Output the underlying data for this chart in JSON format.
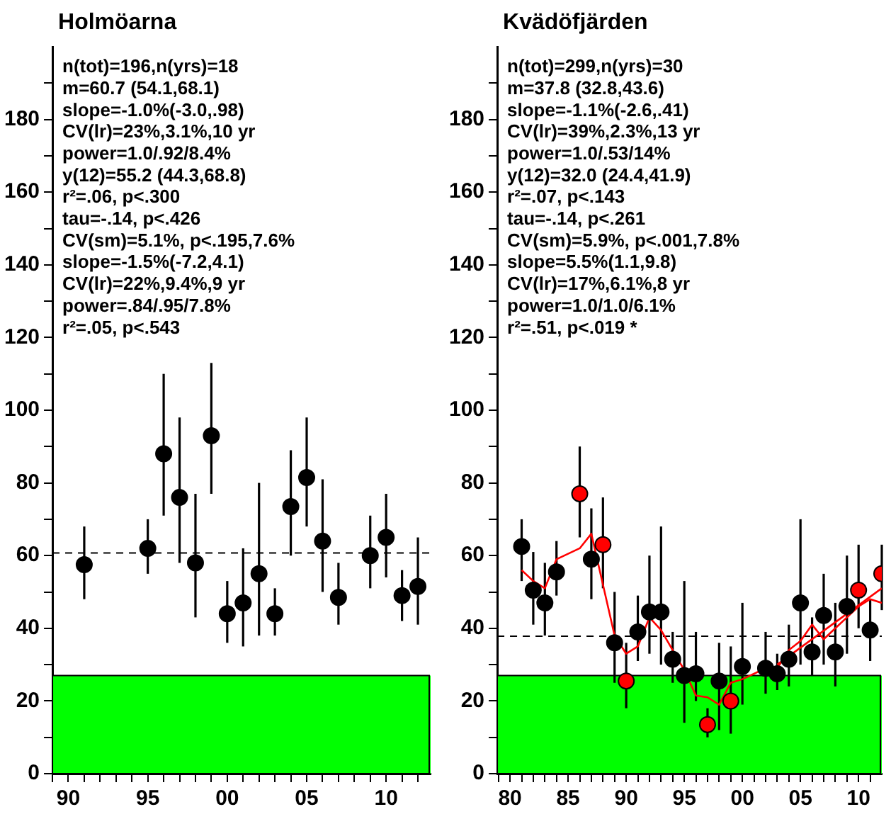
{
  "chart_data": [
    {
      "type": "scatter",
      "title": "Holmöarna",
      "grid": false,
      "legend": false,
      "xlim": [
        1989,
        2012.8
      ],
      "xticks": [
        {
          "value": 1989,
          "label": null
        },
        {
          "value": 1990,
          "label": "90"
        },
        {
          "value": 1991,
          "label": null
        },
        {
          "value": 1992,
          "label": null
        },
        {
          "value": 1993,
          "label": null
        },
        {
          "value": 1994,
          "label": null
        },
        {
          "value": 1995,
          "label": "95"
        },
        {
          "value": 1996,
          "label": null
        },
        {
          "value": 1997,
          "label": null
        },
        {
          "value": 1998,
          "label": null
        },
        {
          "value": 1999,
          "label": null
        },
        {
          "value": 2000,
          "label": "00"
        },
        {
          "value": 2001,
          "label": null
        },
        {
          "value": 2002,
          "label": null
        },
        {
          "value": 2003,
          "label": null
        },
        {
          "value": 2004,
          "label": null
        },
        {
          "value": 2005,
          "label": "05"
        },
        {
          "value": 2006,
          "label": null
        },
        {
          "value": 2007,
          "label": null
        },
        {
          "value": 2008,
          "label": null
        },
        {
          "value": 2009,
          "label": null
        },
        {
          "value": 2010,
          "label": "10"
        },
        {
          "value": 2011,
          "label": null
        },
        {
          "value": 2012,
          "label": null
        }
      ],
      "ylim": [
        0,
        200
      ],
      "yticks": [
        0,
        {
          "value": 10,
          "label": null
        },
        20,
        {
          "value": 30,
          "label": null
        },
        40,
        {
          "value": 50,
          "label": null
        },
        60,
        {
          "value": 70,
          "label": null
        },
        80,
        {
          "value": 90,
          "label": null
        },
        100,
        {
          "value": 110,
          "label": null
        },
        120,
        {
          "value": 130,
          "label": null
        },
        140,
        {
          "value": 150,
          "label": null
        },
        160,
        {
          "value": 170,
          "label": null
        },
        180,
        {
          "value": 190,
          "label": null
        }
      ],
      "series": [
        {
          "marker": "circle",
          "color": "#000000",
          "x": [
            1991,
            1995,
            1996,
            1997,
            1998,
            1999,
            2000,
            2001,
            2002,
            2003,
            2004,
            2005,
            2006,
            2007,
            2009,
            2010,
            2011,
            2012
          ],
          "values": [
            57.5,
            62,
            88,
            76,
            58,
            93,
            44,
            47,
            55,
            44,
            73.5,
            81.5,
            64,
            48.5,
            60,
            65,
            49,
            51.5
          ],
          "errors": [
            [
              48,
              68
            ],
            [
              55,
              70
            ],
            [
              71,
              110
            ],
            [
              58,
              98
            ],
            [
              43,
              77
            ],
            [
              77,
              113
            ],
            [
              36,
              53
            ],
            [
              35,
              62
            ],
            [
              38,
              80
            ],
            [
              38,
              51
            ],
            [
              60,
              89
            ],
            [
              68,
              98
            ],
            [
              50,
              81
            ],
            [
              41,
              58
            ],
            [
              51,
              71
            ],
            [
              54,
              77
            ],
            [
              42,
              56
            ],
            [
              41,
              65
            ]
          ]
        }
      ],
      "ref_lines": [
        {
          "axis": "y",
          "value": 60.7,
          "color": "#000000",
          "line_style": "dashed"
        }
      ],
      "bands": [
        {
          "axis": "y",
          "from": 0,
          "to": 27,
          "color": "#00ff00"
        }
      ],
      "annotations": [
        "n(tot)=196,n(yrs)=18",
        "m=60.7 (54.1,68.1)",
        "slope=-1.0%(-3.0,.98)",
        "CV(lr)=23%,3.1%,10 yr",
        "power=1.0/.92/8.4%",
        "y(12)=55.2 (44.3,68.8)",
        "r²=.06, p<.300",
        "tau=-.14, p<.426",
        "CV(sm)=5.1%, p<.195,7.6%",
        "slope=-1.5%(-7.2,4.1)",
        "CV(lr)=22%,9.4%,9 yr",
        "power=.84/.95/7.8%",
        "r²=.05, p<.543"
      ]
    },
    {
      "type": "scatter",
      "title": "Kvädöfjärden",
      "grid": false,
      "legend": false,
      "xlim": [
        1978.9,
        2012
      ],
      "xticks": [
        {
          "value": 1979,
          "label": null
        },
        {
          "value": 1980,
          "label": "80"
        },
        {
          "value": 1981,
          "label": null
        },
        {
          "value": 1982,
          "label": null
        },
        {
          "value": 1983,
          "label": null
        },
        {
          "value": 1984,
          "label": null
        },
        {
          "value": 1985,
          "label": "85"
        },
        {
          "value": 1986,
          "label": null
        },
        {
          "value": 1987,
          "label": null
        },
        {
          "value": 1988,
          "label": null
        },
        {
          "value": 1989,
          "label": null
        },
        {
          "value": 1990,
          "label": "90"
        },
        {
          "value": 1991,
          "label": null
        },
        {
          "value": 1992,
          "label": null
        },
        {
          "value": 1993,
          "label": null
        },
        {
          "value": 1994,
          "label": null
        },
        {
          "value": 1995,
          "label": "95"
        },
        {
          "value": 1996,
          "label": null
        },
        {
          "value": 1997,
          "label": null
        },
        {
          "value": 1998,
          "label": null
        },
        {
          "value": 1999,
          "label": null
        },
        {
          "value": 2000,
          "label": "00"
        },
        {
          "value": 2001,
          "label": null
        },
        {
          "value": 2002,
          "label": null
        },
        {
          "value": 2003,
          "label": null
        },
        {
          "value": 2004,
          "label": null
        },
        {
          "value": 2005,
          "label": "05"
        },
        {
          "value": 2006,
          "label": null
        },
        {
          "value": 2007,
          "label": null
        },
        {
          "value": 2008,
          "label": null
        },
        {
          "value": 2009,
          "label": null
        },
        {
          "value": 2010,
          "label": "10"
        },
        {
          "value": 2011,
          "label": null
        }
      ],
      "ylim": [
        0,
        200
      ],
      "yticks": [
        0,
        {
          "value": 10,
          "label": null
        },
        20,
        {
          "value": 30,
          "label": null
        },
        40,
        {
          "value": 50,
          "label": null
        },
        60,
        {
          "value": 70,
          "label": null
        },
        80,
        {
          "value": 90,
          "label": null
        },
        100,
        {
          "value": 110,
          "label": null
        },
        120,
        {
          "value": 130,
          "label": null
        },
        140,
        {
          "value": 150,
          "label": null
        },
        160,
        {
          "value": 170,
          "label": null
        },
        180,
        {
          "value": 190,
          "label": null
        }
      ],
      "series": [
        {
          "marker": "circle",
          "x": [
            1981,
            1982,
            1983,
            1984,
            1986,
            1987,
            1988,
            1989,
            1990,
            1991,
            1992,
            1993,
            1994,
            1995,
            1996,
            1997,
            1998,
            1999,
            2000,
            2002,
            2003,
            2004,
            2005,
            2006,
            2007,
            2008,
            2009,
            2010,
            2011,
            2012
          ],
          "colors": [
            "#000000",
            "#000000",
            "#000000",
            "#000000",
            "#ff0000",
            "#000000",
            "#ff0000",
            "#000000",
            "#ff0000",
            "#000000",
            "#000000",
            "#000000",
            "#000000",
            "#000000",
            "#000000",
            "#ff0000",
            "#000000",
            "#ff0000",
            "#000000",
            "#000000",
            "#000000",
            "#000000",
            "#000000",
            "#000000",
            "#000000",
            "#000000",
            "#000000",
            "#ff0000",
            "#000000",
            "#ff0000"
          ],
          "values": [
            62.5,
            50.5,
            47,
            55.5,
            77,
            59,
            63,
            36,
            25.5,
            39,
            44.5,
            44.5,
            31.5,
            27,
            27.5,
            13.5,
            25.5,
            20,
            29.5,
            29,
            27.5,
            31.5,
            47,
            33.5,
            43.5,
            33.5,
            46,
            50.5,
            39.5,
            55
          ],
          "errors": [
            [
              53,
              70
            ],
            [
              41,
              61
            ],
            [
              38,
              58
            ],
            [
              49,
              64
            ],
            [
              65,
              90
            ],
            [
              48,
              73
            ],
            [
              51,
              76
            ],
            [
              25,
              50
            ],
            [
              18,
              36
            ],
            [
              31,
              49
            ],
            [
              33,
              60
            ],
            [
              30,
              68
            ],
            [
              25,
              39
            ],
            [
              14,
              53
            ],
            [
              20,
              39
            ],
            [
              10,
              18
            ],
            [
              12,
              36
            ],
            [
              11,
              35
            ],
            [
              19,
              47
            ],
            [
              22,
              39
            ],
            [
              23,
              33
            ],
            [
              24,
              41
            ],
            [
              30,
              70
            ],
            [
              27,
              43
            ],
            [
              30,
              55
            ],
            [
              24,
              47
            ],
            [
              33,
              60
            ],
            [
              40,
              63
            ],
            [
              31,
              48
            ],
            [
              45,
              63
            ]
          ]
        },
        {
          "type": "line",
          "line_style": "solid",
          "color": "#ff0000",
          "x": [
            1981,
            1982,
            1983,
            1984,
            1985,
            1986,
            1987,
            1988,
            1989,
            1990,
            1991,
            1992,
            1993,
            1994,
            1995,
            1996,
            1997,
            1998,
            1999,
            2000,
            2001,
            2002,
            2003,
            2004,
            2005,
            2006,
            2007,
            2008,
            2009,
            2010,
            2011,
            2012
          ],
          "values": [
            56,
            53,
            51,
            59,
            null,
            62,
            66,
            52,
            38,
            33,
            35,
            43,
            39.5,
            34,
            28.5,
            21.5,
            21,
            19,
            25,
            26,
            null,
            29,
            29,
            34,
            36.5,
            41,
            37,
            40,
            43,
            46,
            48,
            47
          ]
        },
        {
          "type": "line",
          "line_style": "solid",
          "color": "#ff0000",
          "x": [
            2003,
            2012
          ],
          "values": [
            30,
            51
          ]
        }
      ],
      "ref_lines": [
        {
          "axis": "y",
          "value": 37.8,
          "color": "#000000",
          "line_style": "dashed"
        }
      ],
      "bands": [
        {
          "axis": "y",
          "from": 0,
          "to": 27,
          "color": "#00ff00"
        }
      ],
      "annotations": [
        "n(tot)=299,n(yrs)=30",
        "m=37.8 (32.8,43.6)",
        "slope=-1.1%(-2.6,.41)",
        "CV(lr)=39%,2.3%,13 yr",
        "power=1.0/.53/14%",
        "y(12)=32.0 (24.4,41.9)",
        "r²=.07, p<.143",
        "tau=-.14, p<.261",
        "CV(sm)=5.9%, p<.001,7.8%",
        "slope=5.5%(1.1,9.8)",
        "CV(lr)=17%,6.1%,8 yr",
        "power=1.0/1.0/6.1%",
        "r²=.51, p<.019 *"
      ]
    }
  ]
}
